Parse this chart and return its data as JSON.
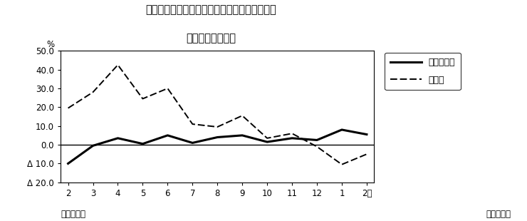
{
  "title_line1": "第２図　所定外労働時間　対前年同月比の推移",
  "title_line2": "（規模５人以上）",
  "xlabel_bottom_left": "平成２４年",
  "xlabel_bottom_right": "平成２５年",
  "x_labels": [
    "2",
    "3",
    "4",
    "5",
    "6",
    "7",
    "8",
    "9",
    "10",
    "11",
    "12",
    "1",
    "2月"
  ],
  "x_values": [
    0,
    1,
    2,
    3,
    4,
    5,
    6,
    7,
    8,
    9,
    10,
    11,
    12
  ],
  "survey_total": [
    -10.0,
    -0.5,
    3.5,
    0.5,
    5.0,
    1.0,
    4.0,
    5.0,
    1.5,
    3.5,
    2.5,
    8.0,
    5.5
  ],
  "manufacturing": [
    19.5,
    28.0,
    42.5,
    24.5,
    30.0,
    11.0,
    9.5,
    15.5,
    3.5,
    6.0,
    -1.0,
    -10.5,
    -5.0
  ],
  "legend_labels": [
    "調査産業計",
    "製造業"
  ],
  "ylim": [
    -20.0,
    50.0
  ],
  "yticks": [
    -20.0,
    -10.0,
    0.0,
    10.0,
    20.0,
    30.0,
    40.0,
    50.0
  ],
  "ytick_labels": [
    "Δ 20.0",
    "Δ 10.0",
    "0.0",
    "10.0",
    "20.0",
    "30.0",
    "40.0",
    "50.0"
  ],
  "ylabel_symbol": "%",
  "line_color": "#000000",
  "bg_color": "#ffffff",
  "title_fontsize": 10.5,
  "tick_fontsize": 8.5,
  "legend_fontsize": 9,
  "survey_lw": 2.2,
  "mfg_lw": 1.4
}
